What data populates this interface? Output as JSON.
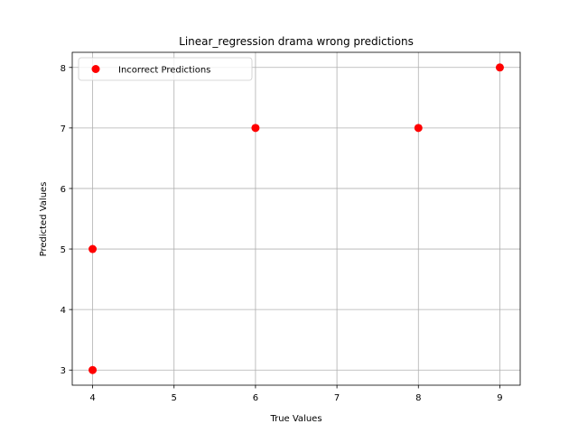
{
  "chart_data": {
    "type": "scatter",
    "title": "Linear_regression drama wrong predictions",
    "xlabel": "True Values",
    "ylabel": "Predicted Values",
    "xlim": [
      3.75,
      9.25
    ],
    "ylim": [
      2.75,
      8.25
    ],
    "xticks": [
      4,
      5,
      6,
      7,
      8,
      9
    ],
    "yticks": [
      3,
      4,
      5,
      6,
      7,
      8
    ],
    "grid": true,
    "legend_position": "upper-left",
    "series": [
      {
        "name": "Incorrect Predictions",
        "color": "#ff0000",
        "x": [
          4,
          4,
          6,
          8,
          9
        ],
        "y": [
          3,
          5,
          7,
          7,
          8
        ]
      }
    ]
  }
}
